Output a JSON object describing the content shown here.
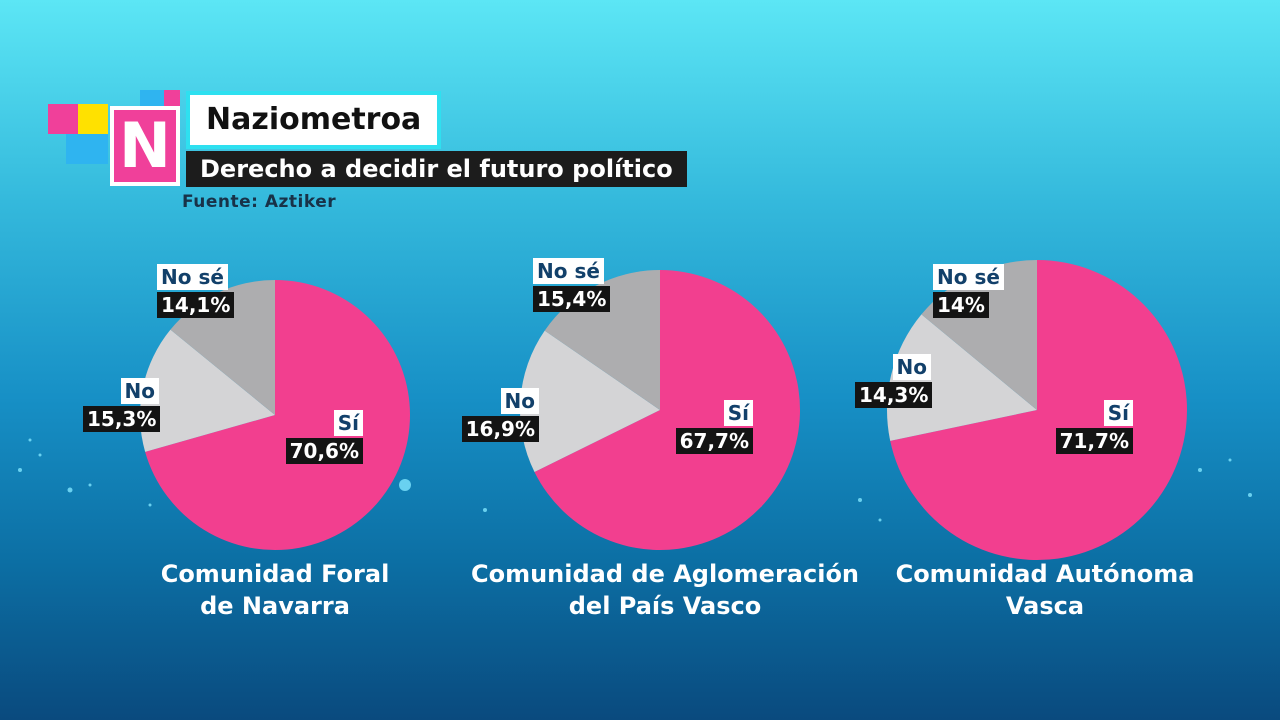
{
  "header": {
    "title": "Naziometroa",
    "subtitle": "Derecho a decidir el futuro político",
    "source": "Fuente: Aztiker",
    "logo_letter": "N"
  },
  "colors": {
    "si": "#f23f8f",
    "no": "#d4d4d6",
    "nose": "#adadaf"
  },
  "chart_data": [
    {
      "type": "pie",
      "title": "Comunidad Foral de Navarra",
      "caption_lines": [
        "Comunidad Foral",
        "de Navarra"
      ],
      "slices": [
        {
          "label": "Sí",
          "value": 70.6,
          "value_text": "70,6%"
        },
        {
          "label": "No",
          "value": 15.3,
          "value_text": "15,3%"
        },
        {
          "label": "No sé",
          "value": 14.1,
          "value_text": "14,1%"
        }
      ]
    },
    {
      "type": "pie",
      "title": "Comunidad de Aglomeración del País Vasco",
      "caption_lines": [
        "Comunidad de Aglomeración",
        "del País Vasco"
      ],
      "slices": [
        {
          "label": "Sí",
          "value": 67.7,
          "value_text": "67,7%"
        },
        {
          "label": "No",
          "value": 16.9,
          "value_text": "16,9%"
        },
        {
          "label": "No sé",
          "value": 15.4,
          "value_text": "15,4%"
        }
      ]
    },
    {
      "type": "pie",
      "title": "Comunidad Autónoma Vasca",
      "caption_lines": [
        "Comunidad Autónoma",
        "Vasca"
      ],
      "slices": [
        {
          "label": "Sí",
          "value": 71.7,
          "value_text": "71,7%"
        },
        {
          "label": "No",
          "value": 14.3,
          "value_text": "14,3%"
        },
        {
          "label": "No sé",
          "value": 14,
          "value_text": "14%"
        }
      ]
    }
  ]
}
